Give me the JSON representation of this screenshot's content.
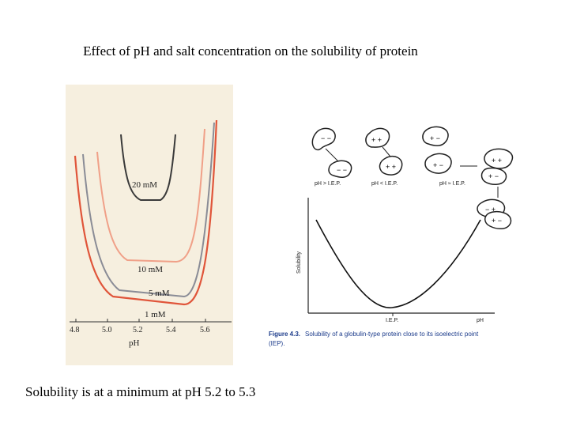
{
  "slide": {
    "title": "Effect of pH and salt concentration on the solubility of protein",
    "caption": "Solubility is at a minimum at pH 5.2 to 5.3"
  },
  "left_figure": {
    "x_axis_label": "pH",
    "ticks": [
      "4.8",
      "5.0",
      "5.2",
      "5.4",
      "5.6"
    ],
    "curve_labels": {
      "c20": "20 mM",
      "c10": "10 mM",
      "c5": "5 mM",
      "c1": "1 mM"
    },
    "colors": {
      "background": "#f6efdf",
      "c20": "#3a3a3a",
      "c10": "#f0a088",
      "c5": "#8a8c96",
      "c1": "#e0553a"
    }
  },
  "right_figure": {
    "y_axis_label": "Solubility",
    "x_axis_labels": [
      "I.E.P.",
      "pH"
    ],
    "ph_labels": [
      "pH > I.E.P.",
      "pH < I.E.P.",
      "pH ≈ I.E.P."
    ],
    "figure_number": "Figure 4.3.",
    "figure_caption_line1": "Solubility of a globulin-type protein close to its isoelectric point",
    "figure_caption_line2": "(IEP)."
  }
}
